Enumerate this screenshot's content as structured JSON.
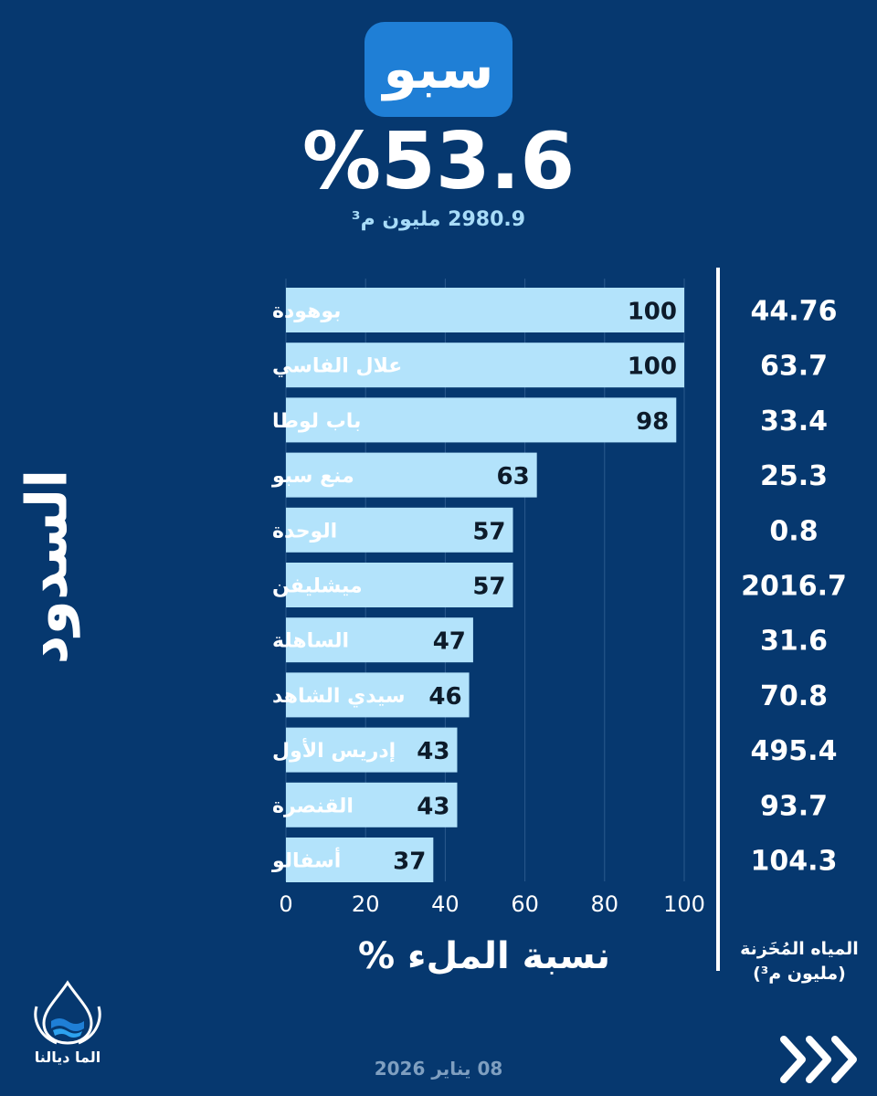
{
  "header": {
    "dam_name": "سبو",
    "fill_percent": "%53.6",
    "stored_volume": "2980.9 مليون م³"
  },
  "y_axis_title": "السدود",
  "x_axis_title": "نسبة الملء %",
  "stored_column_title_line1": "المياه المُخَزنة",
  "stored_column_title_line2": "(مليون م³)",
  "footer": {
    "date": "08 يناير 2026",
    "logo_name": "الما ديالنا",
    "next_icon": "triple-chevron-right-icon"
  },
  "colors": {
    "background": "#06386f",
    "bar": "#b3e3fb",
    "badge": "#1f7fd6"
  },
  "chart_data": {
    "type": "bar",
    "orientation": "horizontal",
    "title": "سبو",
    "xlabel": "نسبة الملء %",
    "ylabel": "السدود",
    "xlim": [
      0,
      100
    ],
    "xticks": [
      0,
      20,
      40,
      60,
      80,
      100
    ],
    "grid": true,
    "categories": [
      "بوهودة",
      "علال الفاسي",
      "باب لوطا",
      "منع سبو",
      "الوحدة",
      "ميشليفن",
      "الساهلة",
      "سيدي الشاهد",
      "إدريس الأول",
      "القنصرة",
      "أسفالو"
    ],
    "values": [
      100,
      100,
      98,
      63,
      57,
      57,
      47,
      46,
      43,
      43,
      37
    ],
    "stored_water_million_m3": [
      "44.76",
      "63.7",
      "33.4",
      "25.3",
      "0.8",
      "2016.7",
      "31.6",
      "70.8",
      "495.4",
      "93.7",
      "104.3"
    ]
  }
}
